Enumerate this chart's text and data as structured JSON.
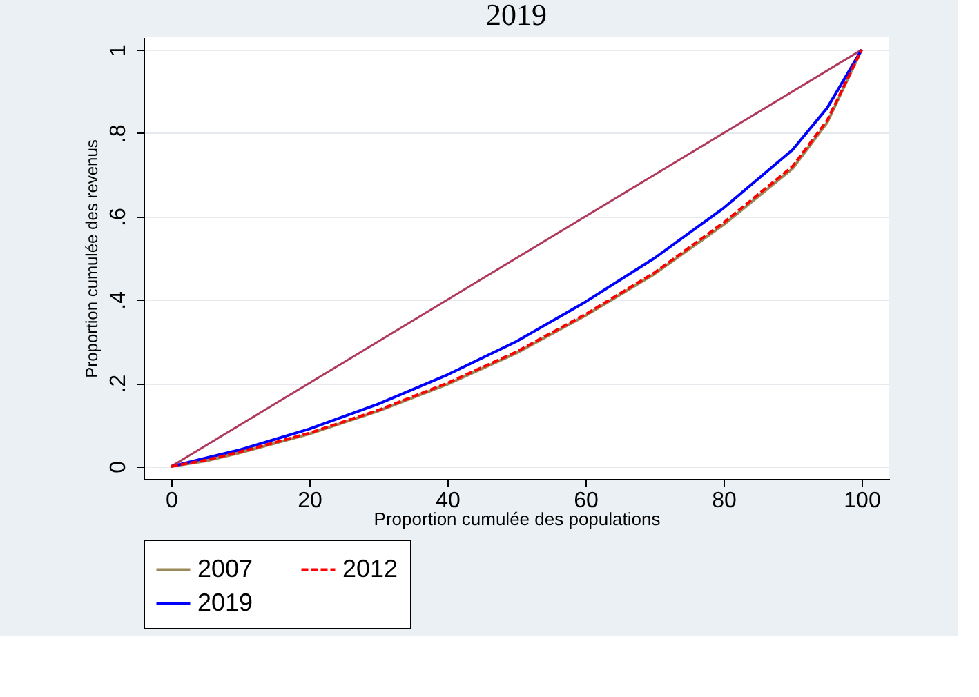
{
  "chart_data": {
    "type": "line",
    "title": "2019",
    "xlabel": "Proportion cumulée des populations",
    "ylabel": "Proportion cumulée des revenus",
    "x": [
      0,
      5,
      10,
      20,
      30,
      40,
      50,
      60,
      70,
      80,
      90,
      95,
      100
    ],
    "series": [
      {
        "color": "#b03a5b",
        "x": [
          0,
          100
        ],
        "values": [
          0,
          1
        ],
        "line_style": "solid"
      },
      {
        "name": "2007",
        "color": "#9a8a5a",
        "line_style": "solid",
        "values": [
          0,
          0.013,
          0.033,
          0.078,
          0.133,
          0.197,
          0.272,
          0.362,
          0.462,
          0.58,
          0.715,
          0.825,
          1
        ]
      },
      {
        "name": "2012",
        "color": "#ff0000",
        "line_style": "dashed",
        "values": [
          0,
          0.015,
          0.035,
          0.08,
          0.135,
          0.2,
          0.275,
          0.365,
          0.465,
          0.585,
          0.72,
          0.83,
          1
        ]
      },
      {
        "name": "2019",
        "color": "#0000ff",
        "line_style": "solid",
        "values": [
          0,
          0.02,
          0.04,
          0.09,
          0.15,
          0.22,
          0.3,
          0.395,
          0.5,
          0.62,
          0.76,
          0.86,
          1
        ]
      }
    ],
    "xlim": [
      -4,
      104
    ],
    "xticks": [
      0,
      20,
      40,
      60,
      80,
      100
    ],
    "ylim": [
      -0.03,
      1.03
    ],
    "yticks": [
      {
        "value": 0,
        "label": "0"
      },
      {
        "value": 0.2,
        "label": ".2"
      },
      {
        "value": 0.4,
        "label": ".4"
      },
      {
        "value": 0.6,
        "label": ".6"
      },
      {
        "value": 0.8,
        "label": ".8"
      },
      {
        "value": 1,
        "label": "1"
      }
    ],
    "grid": "y",
    "legend": "bottom",
    "marker": "none"
  }
}
